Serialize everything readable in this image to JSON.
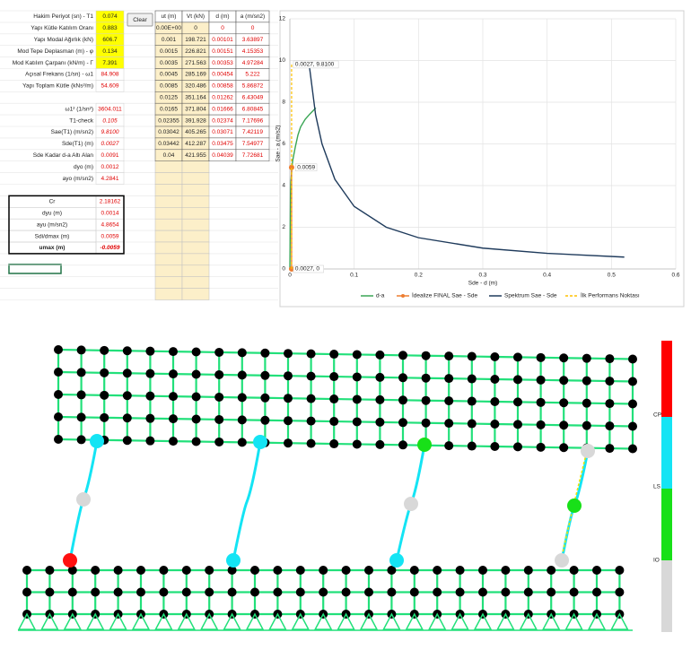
{
  "spreadsheet": {
    "groups": [
      [
        {
          "label": "Hakim Periyot (sn) - T1",
          "value": "0.074"
        },
        {
          "label": "Yapı Kütle Katılım Oranı",
          "value": "0.883"
        },
        {
          "label": "Yapı Modal Ağırlık (kN)",
          "value": "606.7"
        },
        {
          "label": "Mod Tepe Deplasman (m) - φ",
          "value": "0.134"
        },
        {
          "label": "Mod Katılım Çarpanı (kN/m) - Γ",
          "value": "7.391"
        },
        {
          "label": "Açısal Frekans (1/sn) - ω1",
          "value": "84.908"
        },
        {
          "label": "Yapı Toplam Kütle (kNs²/m)",
          "value": "54.609"
        }
      ],
      [
        {
          "label": "ω1² (1/sn²)",
          "value": "3604.011"
        },
        {
          "label": "T1-check",
          "value": "0.105"
        },
        {
          "label": "Sae(T1) (m/sn2)",
          "value": "9.8100"
        },
        {
          "label": "Sde(T1) (m)",
          "value": "0.0027"
        },
        {
          "label": "Sde Kadar d-a Altı Alan",
          "value": "0.0091"
        },
        {
          "label": "dyo (m)",
          "value": "0.0012"
        },
        {
          "label": "ayo (m/sn2)",
          "value": "4.2841"
        }
      ],
      [
        {
          "label": "Cr",
          "value": "2.18162"
        },
        {
          "label": "dyu (m)",
          "value": "0.0014"
        },
        {
          "label": "ayu (m/sn2)",
          "value": "4.8654"
        },
        {
          "label": "Sdi/dmax (m)",
          "value": "0.0059"
        },
        {
          "label": "umax (m)",
          "value": "-0.0059"
        }
      ]
    ],
    "button": "Clear",
    "table": {
      "headers": [
        "ut (m)",
        "Vt (kN)",
        "d (m)",
        "a (m/sn2)"
      ],
      "rows": [
        [
          "0.00E+00",
          "0",
          "0",
          "0"
        ],
        [
          "0.001",
          "198.721",
          "0.00101",
          "3.63897"
        ],
        [
          "0.0015",
          "226.821",
          "0.00151",
          "4.15353"
        ],
        [
          "0.0035",
          "271.563",
          "0.00353",
          "4.97284"
        ],
        [
          "0.0045",
          "285.169",
          "0.00454",
          "5.222"
        ],
        [
          "0.0085",
          "320.486",
          "0.00858",
          "5.86872"
        ],
        [
          "0.0125",
          "351.164",
          "0.01262",
          "6.43049"
        ],
        [
          "0.0165",
          "371.804",
          "0.01666",
          "6.80845"
        ],
        [
          "0.02355",
          "391.928",
          "0.02374",
          "7.17696"
        ],
        [
          "0.03042",
          "405.265",
          "0.03071",
          "7.42119"
        ],
        [
          "0.03442",
          "412.287",
          "0.03475",
          "7.54977"
        ],
        [
          "0.04",
          "421.955",
          "0.04039",
          "7.72681"
        ]
      ]
    }
  },
  "chart_data": {
    "type": "line",
    "xlabel": "Sde - d (m)",
    "ylabel": "Sae - a (m/s2)",
    "xlim": [
      0,
      0.6
    ],
    "ylim": [
      0,
      12
    ],
    "xticks": [
      0,
      0.1,
      0.2,
      0.3,
      0.4,
      0.5,
      0.6
    ],
    "yticks": [
      0,
      2,
      4,
      6,
      8,
      10,
      12
    ],
    "grid": true,
    "series": [
      {
        "name": "d-a",
        "color": "#3aa655",
        "dash": false,
        "x": [
          0,
          0.00101,
          0.00151,
          0.00353,
          0.00454,
          0.00858,
          0.01262,
          0.01666,
          0.02374,
          0.03071,
          0.03475,
          0.04039
        ],
        "values": [
          0,
          3.63897,
          4.15353,
          4.97284,
          5.222,
          5.86872,
          6.43049,
          6.80845,
          7.17696,
          7.42119,
          7.54977,
          7.72681
        ]
      },
      {
        "name": "İdealize FINAL Sae - Sde",
        "color": "#ed7d31",
        "dash": false,
        "markers": true,
        "x": [
          0.0027,
          0.0027
        ],
        "values": [
          0,
          4.87
        ]
      },
      {
        "name": "Spektrum Sae - Sde",
        "color": "#1f3b5c",
        "dash": false,
        "x": [
          0.03,
          0.04,
          0.05,
          0.07,
          0.1,
          0.15,
          0.2,
          0.3,
          0.4,
          0.52
        ],
        "values": [
          9.81,
          7.4,
          6.0,
          4.3,
          3.0,
          2.0,
          1.5,
          1.0,
          0.75,
          0.57
        ]
      },
      {
        "name": "İlk Performans Noktası",
        "color": "#ffc000",
        "dash": true,
        "x": [
          0.0027,
          0.0027
        ],
        "values": [
          0,
          9.81
        ]
      }
    ],
    "annotations": [
      {
        "text": "0.0027, 9.8100",
        "x": 0.0027,
        "y": 9.81
      },
      {
        "text": "0.0059",
        "x": 0.0059,
        "y": 4.87
      },
      {
        "text": "0.0027, 0",
        "x": 0.0027,
        "y": 0
      }
    ]
  },
  "model": {
    "legend": [
      "CP",
      "LS",
      "IO"
    ]
  }
}
